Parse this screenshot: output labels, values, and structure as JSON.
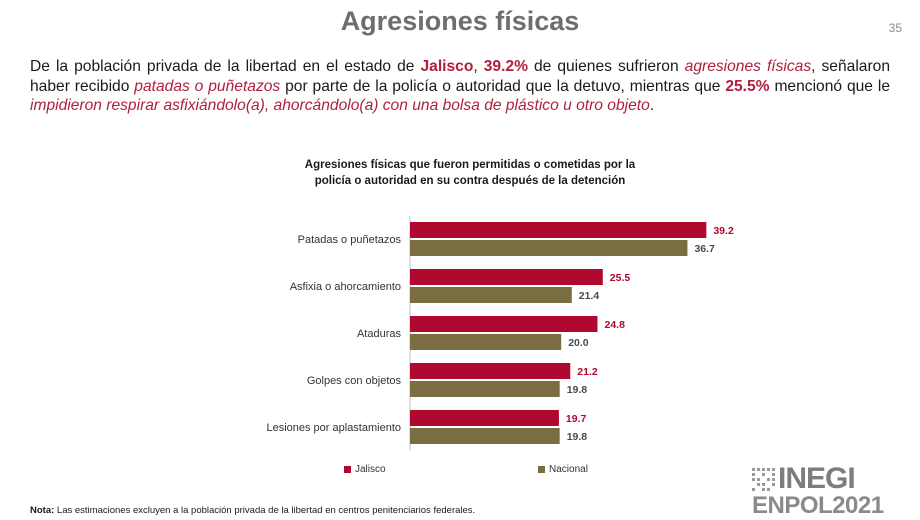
{
  "header": {
    "title": "Agresiones físicas",
    "page_number": "35"
  },
  "intro": {
    "p1": "De la población privada de la libertad en el estado de ",
    "state": "Jalisco",
    "p2": ", ",
    "pct_physical": "39.2%",
    "p3": " de quienes sufrieron ",
    "phrase_physical": "agresiones físicas",
    "p4": ", señalaron haber recibido ",
    "phrase_kicks": "patadas o puñetazos",
    "p5": " por parte de la policía o autoridad que la detuvo, mientras que ",
    "pct_asphyxia": "25.5%",
    "p6": " mencionó que le ",
    "phrase_asphyxia": "impidieron respirar asfixiándolo(a), ahorcándolo(a) con una bolsa de plástico u otro objeto",
    "p7": "."
  },
  "chart_data": {
    "type": "bar",
    "orientation": "horizontal",
    "title_line1": "Agresiones físicas que fueron permitidas o cometidas por la",
    "title_line2": "policía o autoridad en su contra después de la detención",
    "categories": [
      "Patadas o puñetazos",
      "Asfixia o ahorcamiento",
      "Ataduras",
      "Golpes con objetos",
      "Lesiones por aplastamiento"
    ],
    "series": [
      {
        "name": "Jalisco",
        "color": "#b0092f",
        "values": [
          39.2,
          25.5,
          24.8,
          21.2,
          19.7
        ]
      },
      {
        "name": "Nacional",
        "color": "#7b6d42",
        "values": [
          36.7,
          21.4,
          20.0,
          19.8,
          19.8
        ]
      }
    ],
    "xlim": [
      0,
      45
    ],
    "legend_position": "bottom"
  },
  "footnote": {
    "label": "Nota:",
    "text": " Las estimaciones excluyen a la población privada de la libertad en centros penitenciarios federales."
  },
  "logo": {
    "top": "INEGI",
    "bottom": "ENPOL2021"
  }
}
